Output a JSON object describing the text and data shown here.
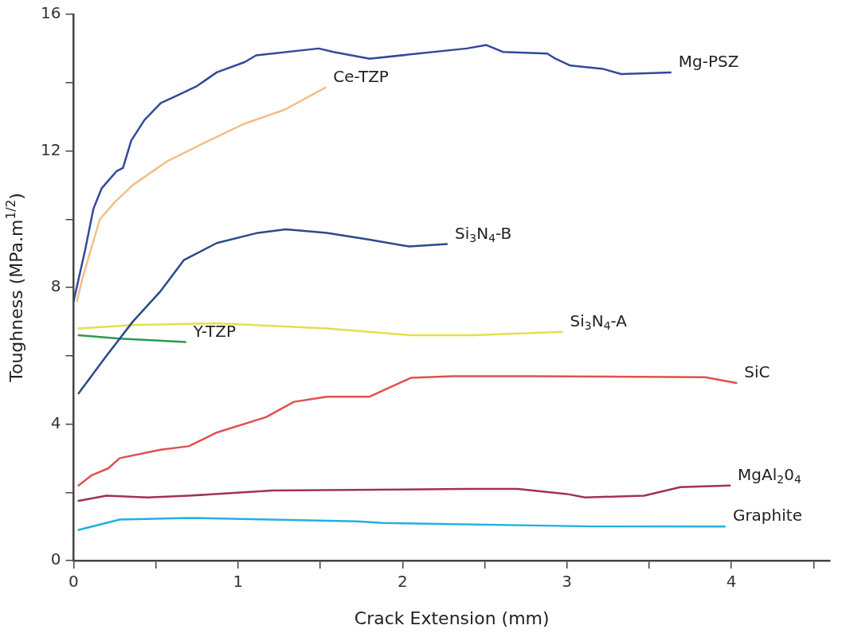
{
  "chart_data": {
    "type": "line",
    "xlabel": "Crack Extension (mm)",
    "ylabel": "Toughness (MPa.m$^{1/2}$)",
    "xlim": [
      0,
      4.6
    ],
    "xticks": [
      0,
      {
        "value": 0.5,
        "label": null
      },
      1,
      {
        "value": 1.5,
        "label": null
      },
      2,
      {
        "value": 2.5,
        "label": null
      },
      3,
      {
        "value": 3.5,
        "label": null
      },
      4,
      {
        "value": 4.5,
        "label": null
      }
    ],
    "ylim": [
      0,
      16
    ],
    "yticks": [
      0,
      {
        "value": 2,
        "label": null
      },
      4,
      {
        "value": 6,
        "label": null
      },
      8,
      {
        "value": 10,
        "label": null
      },
      12,
      {
        "value": 14,
        "label": null
      },
      16
    ],
    "grid": false,
    "legend": false,
    "marker": "none",
    "line_style": "solid",
    "series": [
      {
        "name": "Mg-PSZ",
        "color": "#34499a",
        "x": [
          0,
          0.07,
          0.12,
          0.17,
          0.26,
          0.3,
          0.35,
          0.43,
          0.53,
          0.62,
          0.75,
          0.87,
          1.04,
          1.11,
          1.49,
          1.58,
          1.8,
          2.39,
          2.51,
          2.61,
          2.88,
          2.93,
          3.02,
          3.22,
          3.33,
          3.63
        ],
        "values": [
          7.6,
          9.1,
          10.3,
          10.9,
          11.4,
          11.5,
          12.3,
          12.9,
          13.4,
          13.6,
          13.9,
          14.3,
          14.6,
          14.8,
          15.0,
          14.9,
          14.7,
          15.0,
          15.1,
          14.9,
          14.85,
          14.7,
          14.5,
          14.4,
          14.25,
          14.3
        ]
      },
      {
        "name": "Ce-TZP",
        "color": "#f0c088",
        "x": [
          0.02,
          0.05,
          0.11,
          0.16,
          0.25,
          0.36,
          0.57,
          0.8,
          1.04,
          1.28,
          1.53
        ],
        "values": [
          7.6,
          8.2,
          9.2,
          10.0,
          10.5,
          11.0,
          11.7,
          12.25,
          12.8,
          13.2,
          13.85
        ]
      },
      {
        "name": "Si$_{3}$N$_{4}$-B",
        "color": "#2c4a8c",
        "x": [
          0.03,
          0.2,
          0.36,
          0.53,
          0.67,
          0.87,
          1.12,
          1.29,
          1.54,
          1.8,
          2.04,
          2.27
        ],
        "values": [
          4.9,
          6.0,
          7.0,
          7.9,
          8.8,
          9.3,
          9.6,
          9.7,
          9.6,
          9.4,
          9.2,
          9.27
        ]
      },
      {
        "name": "Si$_{3}$N$_{4}$-A",
        "color": "#e2e04e",
        "x": [
          0.03,
          0.36,
          0.87,
          1.54,
          2.05,
          2.43,
          2.97
        ],
        "values": [
          6.8,
          6.9,
          6.95,
          6.8,
          6.6,
          6.6,
          6.7
        ]
      },
      {
        "name": "Y-TZP",
        "color": "#2a9a52",
        "x": [
          0.03,
          0.28,
          0.68
        ],
        "values": [
          6.6,
          6.5,
          6.4
        ]
      },
      {
        "name": "SiC",
        "color": "#e05050",
        "x": [
          0.03,
          0.11,
          0.21,
          0.28,
          0.53,
          0.7,
          0.87,
          1.17,
          1.34,
          1.54,
          1.8,
          2.05,
          2.3,
          2.79,
          3.84,
          4.03
        ],
        "values": [
          2.2,
          2.5,
          2.7,
          3.0,
          3.25,
          3.35,
          3.75,
          4.2,
          4.65,
          4.8,
          4.8,
          5.35,
          5.4,
          5.4,
          5.37,
          5.2
        ]
      },
      {
        "name": "MgAl$_{2}$0$_{4}$",
        "color": "#a2305c",
        "x": [
          0.03,
          0.2,
          0.45,
          0.7,
          1.21,
          2.39,
          2.7,
          3.0,
          3.11,
          3.47,
          3.69,
          3.99
        ],
        "values": [
          1.75,
          1.9,
          1.85,
          1.9,
          2.05,
          2.1,
          2.1,
          1.95,
          1.85,
          1.9,
          2.15,
          2.2
        ]
      },
      {
        "name": "Graphite",
        "color": "#22b0e0",
        "x": [
          0.03,
          0.28,
          0.7,
          1.72,
          1.88,
          3.15,
          3.96
        ],
        "values": [
          0.9,
          1.2,
          1.25,
          1.15,
          1.1,
          1.0,
          1.0
        ]
      }
    ]
  }
}
